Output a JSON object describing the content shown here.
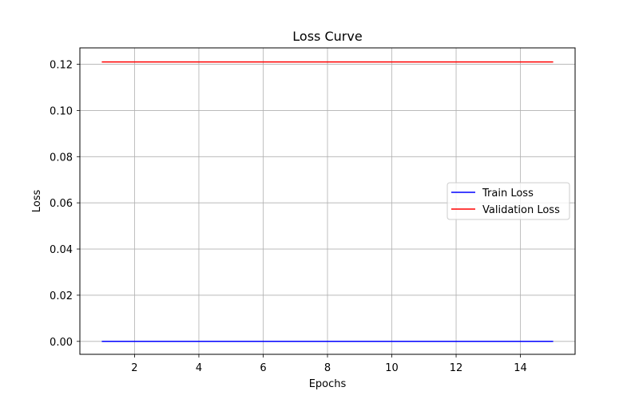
{
  "chart_data": {
    "type": "line",
    "title": "Loss Curve",
    "xlabel": "Epochs",
    "ylabel": "Loss",
    "x": [
      1,
      2,
      3,
      4,
      5,
      6,
      7,
      8,
      9,
      10,
      11,
      12,
      13,
      14,
      15
    ],
    "xlim": [
      0.3,
      15.7
    ],
    "ylim": [
      -0.0056,
      0.1271
    ],
    "xticks": [
      2,
      4,
      6,
      8,
      10,
      12,
      14
    ],
    "xtick_labels": [
      "2",
      "4",
      "6",
      "8",
      "10",
      "12",
      "14"
    ],
    "yticks": [
      0.0,
      0.02,
      0.04,
      0.06,
      0.08,
      0.1,
      0.12
    ],
    "ytick_labels": [
      "0.00",
      "0.02",
      "0.04",
      "0.06",
      "0.08",
      "0.10",
      "0.12"
    ],
    "grid": true,
    "legend_position": "center-right",
    "series": [
      {
        "name": "Train Loss",
        "color": "#0000ff",
        "values": [
          0.0,
          0.0,
          0.0,
          0.0,
          0.0,
          0.0,
          0.0,
          0.0,
          0.0,
          0.0,
          0.0,
          0.0,
          0.0,
          0.0,
          0.0
        ]
      },
      {
        "name": "Validation Loss",
        "color": "#ff0000",
        "values": [
          0.121,
          0.121,
          0.121,
          0.121,
          0.121,
          0.121,
          0.121,
          0.121,
          0.121,
          0.121,
          0.121,
          0.121,
          0.121,
          0.121,
          0.121
        ]
      }
    ]
  }
}
